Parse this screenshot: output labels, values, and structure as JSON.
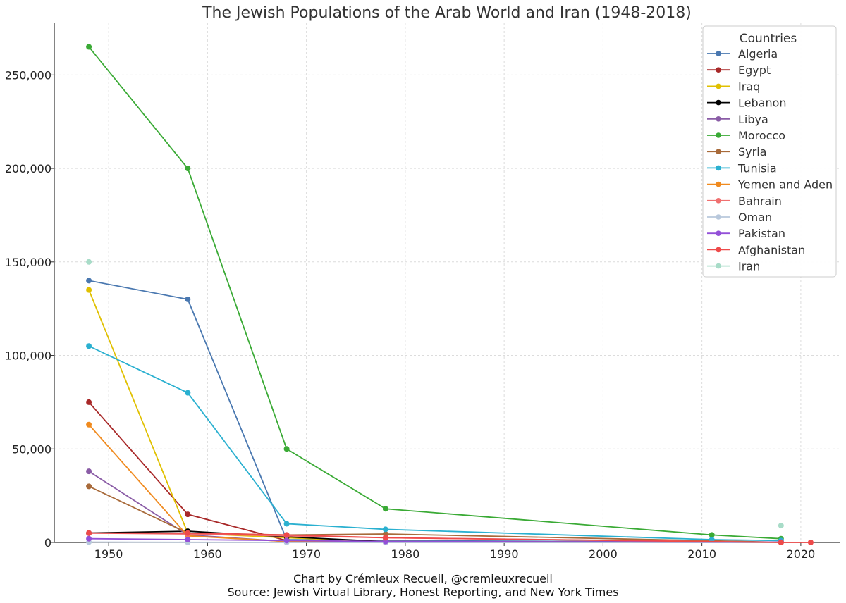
{
  "chart_data": {
    "type": "line",
    "title": "The Jewish Populations of the Arab World and Iran (1948-2018)",
    "xlabel": "",
    "ylabel": "",
    "xlim": [
      1944.5,
      2024
    ],
    "ylim": [
      0,
      278000
    ],
    "x_ticks": [
      1950,
      1960,
      1970,
      1980,
      1990,
      2000,
      2010,
      2020
    ],
    "x_tick_labels": [
      "1950",
      "1960",
      "1970",
      "1980",
      "1990",
      "2000",
      "2010",
      "2020"
    ],
    "y_ticks": [
      0,
      50000,
      100000,
      150000,
      200000,
      250000
    ],
    "y_tick_labels": [
      "0",
      "50,000",
      "100,000",
      "150,000",
      "200,000",
      "250,000"
    ],
    "grid": true,
    "legend_title": "Countries",
    "legend_position": "top-right",
    "series": [
      {
        "name": "Algeria",
        "color": "#4a78b0",
        "x": [
          1948,
          1958,
          1968,
          1978,
          2018
        ],
        "y": [
          140000,
          130000,
          1500,
          1000,
          50
        ]
      },
      {
        "name": "Egypt",
        "color": "#a82828",
        "x": [
          1948,
          1958,
          1968,
          1978,
          2018
        ],
        "y": [
          75000,
          15000,
          1000,
          400,
          100
        ]
      },
      {
        "name": "Iraq",
        "color": "#e0c000",
        "x": [
          1948,
          1958,
          1968,
          1978,
          2018
        ],
        "y": [
          135000,
          5000,
          2500,
          350,
          5
        ]
      },
      {
        "name": "Lebanon",
        "color": "#000000",
        "x": [
          1948,
          1958,
          1968,
          1978,
          2018
        ],
        "y": [
          5000,
          6000,
          3000,
          400,
          100
        ]
      },
      {
        "name": "Libya",
        "color": "#8a5ca6",
        "x": [
          1948,
          1958,
          1968,
          1978,
          2018
        ],
        "y": [
          38000,
          4000,
          500,
          50,
          0
        ]
      },
      {
        "name": "Morocco",
        "color": "#3aaa35",
        "x": [
          1948,
          1958,
          1968,
          1978,
          2011,
          2018
        ],
        "y": [
          265000,
          200000,
          50000,
          18000,
          4000,
          2000
        ]
      },
      {
        "name": "Syria",
        "color": "#a86a3a",
        "x": [
          1948,
          1958,
          1968,
          1978,
          2018
        ],
        "y": [
          30000,
          5000,
          4000,
          4500,
          100
        ]
      },
      {
        "name": "Tunisia",
        "color": "#2ab0d0",
        "x": [
          1948,
          1958,
          1968,
          1978,
          2011,
          2018
        ],
        "y": [
          105000,
          80000,
          10000,
          7000,
          1500,
          1000
        ]
      },
      {
        "name": "Yemen and Aden",
        "color": "#f08a1e",
        "x": [
          1948,
          1958,
          1968,
          1978,
          2018
        ],
        "y": [
          63000,
          3500,
          500,
          500,
          50
        ]
      },
      {
        "name": "Bahrain",
        "color": "#f07070",
        "x": [
          1948,
          1958,
          1968,
          1978,
          2018
        ],
        "y": [
          5000,
          4500,
          3500,
          2500,
          50
        ]
      },
      {
        "name": "Oman",
        "color": "#b8c8dc",
        "x": [
          1948,
          1958,
          1968,
          1978,
          2018
        ],
        "y": [
          200,
          100,
          50,
          10,
          0
        ]
      },
      {
        "name": "Pakistan",
        "color": "#9350d8",
        "x": [
          1948,
          1958,
          1968,
          1978,
          2018
        ],
        "y": [
          2000,
          1500,
          1000,
          500,
          200
        ]
      },
      {
        "name": "Afghanistan",
        "color": "#ee4a4a",
        "x": [
          1948,
          1958,
          1968,
          1978,
          2018,
          2021
        ],
        "y": [
          5000,
          5000,
          4000,
          2500,
          1,
          0
        ]
      },
      {
        "name": "Iran",
        "color": "#a8dcc8",
        "x": [
          1948,
          2018
        ],
        "y": [
          150000,
          9000
        ],
        "line": false
      }
    ]
  },
  "caption": {
    "line1": "Chart by Crémieux Recueil, @cremieuxrecueil",
    "line2": "Source: Jewish Virtual Library, Honest Reporting, and New York Times"
  }
}
